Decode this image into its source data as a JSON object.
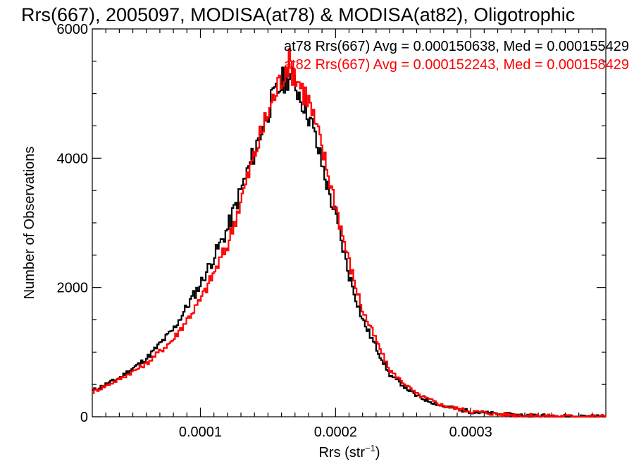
{
  "chart_data": {
    "type": "histogram",
    "title": "Rrs(667), 2005097, MODISA(at78) & MODISA(at82), Oligotrophic",
    "xlabel": "Rrs (str",
    "xlabel_sup": "−1",
    "xlabel_close": ")",
    "ylabel": "Number of Observations",
    "xlim": [
      2e-05,
      0.0004
    ],
    "ylim": [
      0,
      6000
    ],
    "x_ticks": [
      0.0001,
      0.0002,
      0.0003
    ],
    "x_tick_labels": [
      "0.0001",
      "0.0002",
      "0.0003"
    ],
    "y_ticks": [
      0,
      2000,
      4000,
      6000
    ],
    "y_tick_labels": [
      "0",
      "2000",
      "4000",
      "6000"
    ],
    "grid": false,
    "legend_position": "top-right",
    "legend": [
      "at78 Rrs(667) Avg = 0.000150638, Med = 0.000155429",
      "at82 Rrs(667) Avg = 0.000152243, Med = 0.000158429"
    ],
    "series": [
      {
        "name": "at78",
        "color": "#000000",
        "x": [
          2e-05,
          4e-05,
          6e-05,
          8e-05,
          0.0001,
          0.00012,
          0.00013,
          0.00014,
          0.00015,
          0.00016,
          0.000165,
          0.00017,
          0.00018,
          0.00019,
          0.0002,
          0.00021,
          0.00022,
          0.00024,
          0.00026,
          0.00028,
          0.0003,
          0.00032,
          0.00034,
          0.00036,
          0.00038,
          0.0004
        ],
        "values": [
          400,
          600,
          900,
          1350,
          2050,
          2900,
          3500,
          4100,
          4750,
          5150,
          5300,
          5150,
          4700,
          3900,
          3100,
          2200,
          1500,
          650,
          320,
          160,
          80,
          40,
          20,
          10,
          5,
          2
        ]
      },
      {
        "name": "at82",
        "color": "#ff0000",
        "x": [
          2e-05,
          4e-05,
          6e-05,
          8e-05,
          0.0001,
          0.00012,
          0.00013,
          0.00014,
          0.00015,
          0.00016,
          0.000165,
          0.00017,
          0.00018,
          0.00019,
          0.0002,
          0.00021,
          0.00022,
          0.00024,
          0.00026,
          0.00028,
          0.0003,
          0.00032,
          0.00034,
          0.00036,
          0.00038,
          0.0004
        ],
        "values": [
          380,
          580,
          820,
          1200,
          1800,
          2650,
          3350,
          4050,
          4700,
          5250,
          5500,
          5300,
          4900,
          4150,
          3300,
          2400,
          1650,
          720,
          350,
          170,
          85,
          42,
          20,
          10,
          5,
          2
        ]
      }
    ]
  }
}
